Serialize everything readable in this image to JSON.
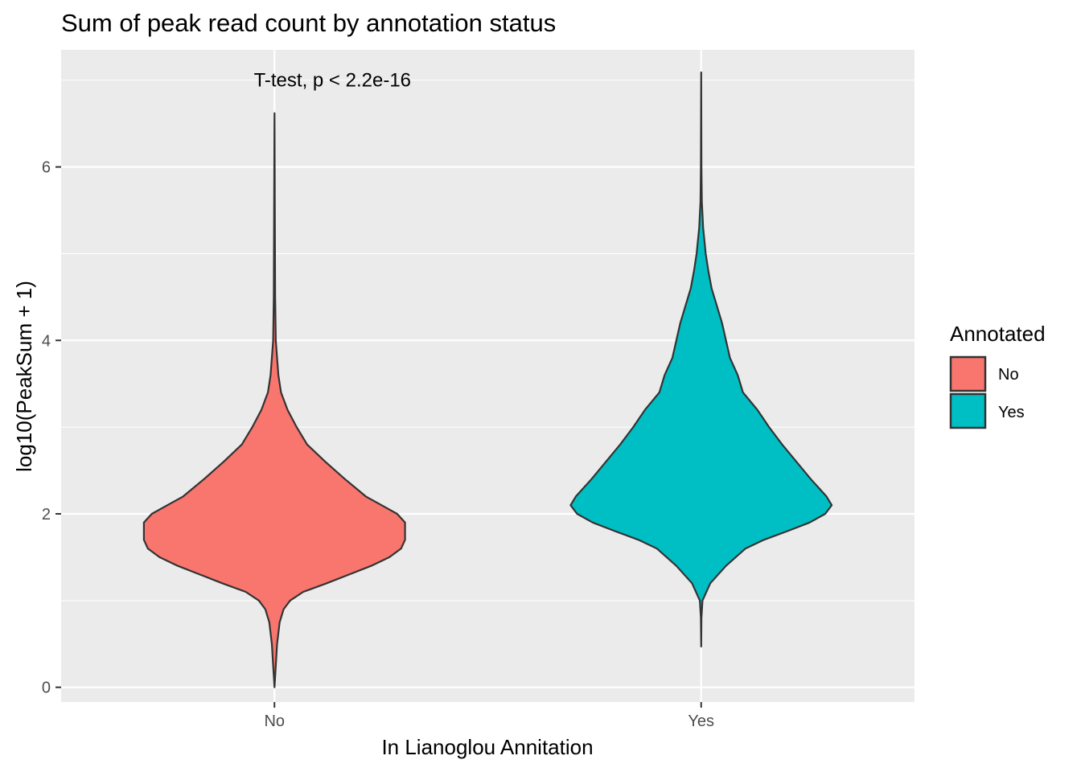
{
  "chart_data": {
    "type": "violin",
    "title": "Sum of peak read count by annotation status",
    "xlabel": "In Lianoglou Annitation",
    "ylabel": "log10(PeakSum + 1)",
    "categories": [
      "No",
      "Yes"
    ],
    "ylim": [
      -0.17,
      7.35
    ],
    "yticks": [
      0,
      2,
      4,
      6
    ],
    "grid": true,
    "annotation": "T-test, p < 2.2e-16",
    "legend": {
      "title": "Annotated",
      "position": "right",
      "entries": [
        "No",
        "Yes"
      ]
    },
    "colors": {
      "No": "#F8766D",
      "Yes": "#00BFC4",
      "panel": "#EBEBEB",
      "grid": "#FFFFFF",
      "outline": "#333333"
    },
    "series": [
      {
        "category": "No",
        "y_range": [
          0,
          6.62
        ],
        "density_profile": [
          [
            0,
            0.0
          ],
          [
            0.25,
            0.01
          ],
          [
            0.5,
            0.02
          ],
          [
            0.75,
            0.04
          ],
          [
            0.9,
            0.07
          ],
          [
            1.0,
            0.12
          ],
          [
            1.1,
            0.22
          ],
          [
            1.2,
            0.4
          ],
          [
            1.3,
            0.57
          ],
          [
            1.4,
            0.74
          ],
          [
            1.5,
            0.88
          ],
          [
            1.6,
            0.97
          ],
          [
            1.7,
            1.0
          ],
          [
            1.8,
            1.0
          ],
          [
            1.9,
            1.0
          ],
          [
            2.0,
            0.94
          ],
          [
            2.1,
            0.82
          ],
          [
            2.2,
            0.7
          ],
          [
            2.4,
            0.54
          ],
          [
            2.6,
            0.39
          ],
          [
            2.8,
            0.25
          ],
          [
            3.0,
            0.17
          ],
          [
            3.2,
            0.1
          ],
          [
            3.4,
            0.05
          ],
          [
            3.6,
            0.03
          ],
          [
            3.8,
            0.02
          ],
          [
            4.0,
            0.01
          ],
          [
            4.5,
            0.005
          ],
          [
            5.5,
            0.003
          ],
          [
            6.62,
            0.0
          ]
        ]
      },
      {
        "category": "Yes",
        "y_range": [
          0.47,
          7.09
        ],
        "density_profile": [
          [
            0.47,
            0.0
          ],
          [
            0.8,
            0.002
          ],
          [
            1.0,
            0.01
          ],
          [
            1.2,
            0.07
          ],
          [
            1.4,
            0.19
          ],
          [
            1.6,
            0.34
          ],
          [
            1.7,
            0.48
          ],
          [
            1.8,
            0.66
          ],
          [
            1.9,
            0.83
          ],
          [
            2.0,
            0.95
          ],
          [
            2.1,
            1.0
          ],
          [
            2.2,
            0.96
          ],
          [
            2.4,
            0.84
          ],
          [
            2.6,
            0.73
          ],
          [
            2.8,
            0.62
          ],
          [
            3.0,
            0.52
          ],
          [
            3.2,
            0.43
          ],
          [
            3.4,
            0.32
          ],
          [
            3.6,
            0.28
          ],
          [
            3.8,
            0.22
          ],
          [
            4.0,
            0.19
          ],
          [
            4.2,
            0.16
          ],
          [
            4.4,
            0.12
          ],
          [
            4.6,
            0.08
          ],
          [
            4.8,
            0.055
          ],
          [
            5.0,
            0.035
          ],
          [
            5.3,
            0.015
          ],
          [
            5.6,
            0.005
          ],
          [
            6.0,
            0.002
          ],
          [
            7.09,
            0.0
          ]
        ]
      }
    ]
  }
}
